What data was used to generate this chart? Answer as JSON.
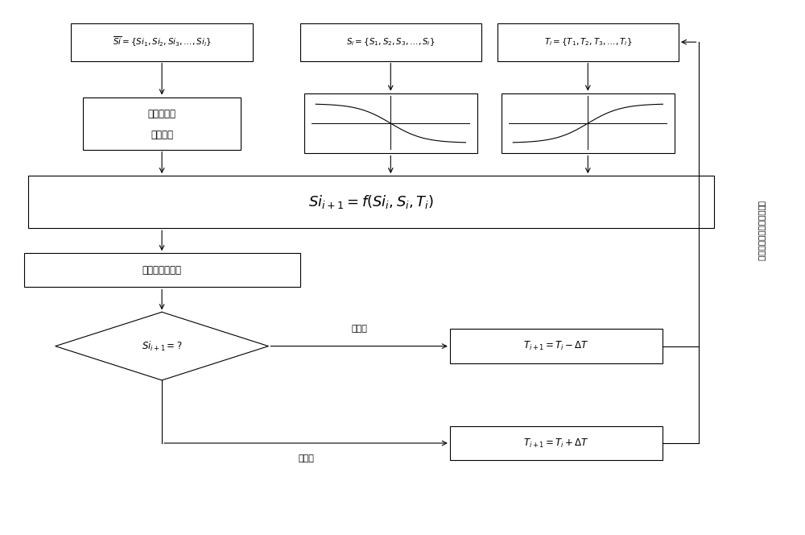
{
  "bg_color": "#ffffff",
  "box_color": "#ffffff",
  "box_edge": "#000000",
  "arrow_color": "#000000",
  "text_color": "#000000",
  "box1_text": "$\\overline{Si} = \\{Si_1, Si_2, Si_3, \\ldots, Si_i\\}$",
  "box2_text": "$S_i = \\{S_1, S_2, S_3, \\ldots, S_i\\}$",
  "box3_text": "$T_i = \\{T_1, T_2, T_3, \\ldots, T_i\\}$",
  "box4_line1": "硅均线系统",
  "box4_line2": "数据处理",
  "box5_text": "$Si_{i+1} = f(Si_i, S_i, T_i)$",
  "box6_text": "数据和曲线显示",
  "diamond_text": "$Si_{i+1} = ?$",
  "box7_text": "$T_{i+1} = T_i - \\Delta T$",
  "box8_text": "$T_{i+1} = T_i + \\Delta T$",
  "label_high": "硅升高",
  "label_low": "硅降低",
  "side_label": "炉长根据预报结果进行操作",
  "figsize": [
    10.0,
    6.64
  ],
  "dpi": 100
}
